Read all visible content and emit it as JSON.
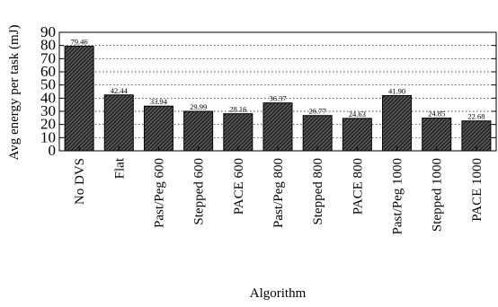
{
  "chart_data": {
    "type": "bar",
    "categories": [
      "No DVS",
      "Flat",
      "Past/Peg 600",
      "Stepped 600",
      "PACE 600",
      "Past/Peg 800",
      "Stepped 800",
      "PACE 800",
      "Past/Peg 1000",
      "Stepped 1000",
      "PACE 1000"
    ],
    "values": [
      79.46,
      42.44,
      33.94,
      29.99,
      28.16,
      36.37,
      26.77,
      24.63,
      41.9,
      24.85,
      22.68
    ],
    "value_labels": [
      "79.46",
      "42.44",
      "33.94",
      "29.99",
      "28.16",
      "36.37",
      "26.77",
      "24.63",
      "41.90",
      "24.85",
      "22.68"
    ],
    "yticks": [
      "0",
      "10",
      "20",
      "30",
      "40",
      "50",
      "60",
      "70",
      "80",
      "90"
    ],
    "xlabel": "Algorithm",
    "ylabel": "Avg energy per task (mJ)",
    "ylim": [
      0,
      90
    ],
    "grid": true,
    "bar_fill": "hatched dark grey",
    "colors": {
      "bar_hatch": "#1a1a1a",
      "bar_base": "#555555"
    }
  }
}
